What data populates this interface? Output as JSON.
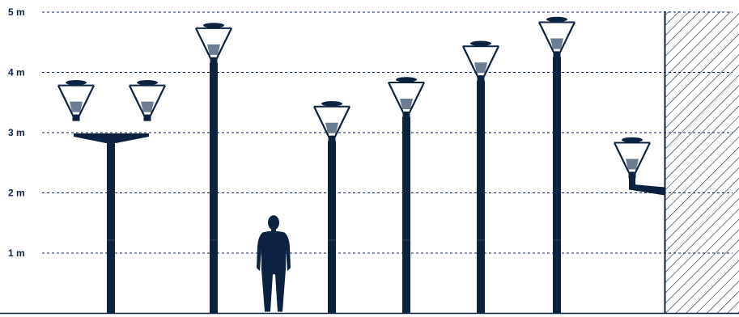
{
  "colors": {
    "navy": "#0d2240",
    "globe": "#6b7d90",
    "grid": "#0d2240",
    "background": "#ffffff"
  },
  "height_scale": {
    "unit": "m",
    "ticks": [
      {
        "value": 1,
        "label": "1 m"
      },
      {
        "value": 2,
        "label": "2 m"
      },
      {
        "value": 3,
        "label": "3 m"
      },
      {
        "value": 4,
        "label": "4 m"
      },
      {
        "value": 5,
        "label": "5 m"
      }
    ]
  },
  "lamps": [
    {
      "id": "double-arm-post",
      "type": "double",
      "height_m": 3.0
    },
    {
      "id": "post-4-8m",
      "type": "post",
      "height_m": 4.8
    },
    {
      "id": "post-3-5m",
      "type": "post",
      "height_m": 3.5
    },
    {
      "id": "post-3-9m",
      "type": "post",
      "height_m": 3.9
    },
    {
      "id": "post-4-5m",
      "type": "post",
      "height_m": 4.5
    },
    {
      "id": "post-4-9m",
      "type": "post",
      "height_m": 4.9
    },
    {
      "id": "wall-mount",
      "type": "wall",
      "height_m": 2.9
    }
  ],
  "person": {
    "height_m": 1.6
  },
  "wall": {
    "pattern": "diagonal-hatch"
  }
}
